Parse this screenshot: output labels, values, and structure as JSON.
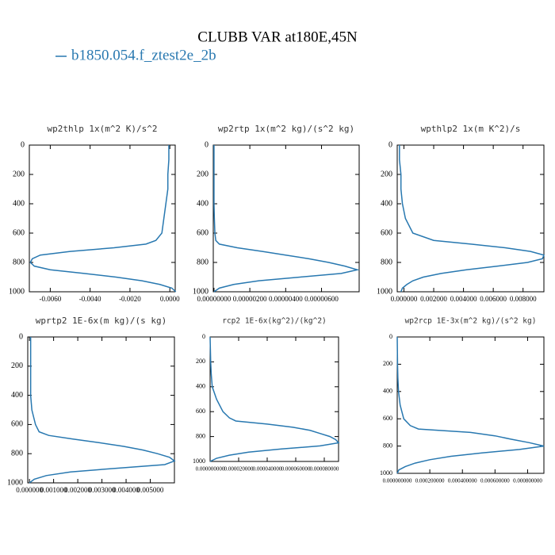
{
  "title": "CLUBB VAR at180E,45N",
  "legend": [
    {
      "name": "b1850.054.f_ztest2e_2b",
      "color": "#2878b0"
    }
  ],
  "chart_data": [
    {
      "type": "line",
      "title": "wp2thlp  1x(m^2 K)/s^2",
      "color": "#2878b0",
      "levels": [
        0,
        100,
        200,
        300,
        400,
        500,
        600,
        650,
        675,
        700,
        725,
        750,
        775,
        800,
        825,
        850,
        875,
        900,
        925,
        950,
        975,
        1000
      ],
      "values": [
        -5e-05,
        -5e-05,
        -0.0001,
        -0.0001,
        -0.0002,
        -0.0003,
        -0.0004,
        -0.0007,
        -0.0012,
        -0.0028,
        -0.005,
        -0.0065,
        -0.0069,
        -0.007,
        -0.0068,
        -0.006,
        -0.0043,
        -0.0027,
        -0.0014,
        -0.0005,
        0.0001,
        0.0003
      ],
      "xlim": [
        -0.00705,
        0.00027
      ],
      "xticks": [
        {
          "value": -0.006,
          "label": "-0.0060"
        },
        {
          "value": -0.004,
          "label": "-0.0040"
        },
        {
          "value": -0.002,
          "label": "-0.0020"
        },
        {
          "value": 0,
          "label": "0.0000"
        }
      ],
      "ylim": [
        0,
        1000
      ],
      "yticks": [
        0,
        200,
        400,
        600,
        800,
        1000
      ]
    },
    {
      "type": "line",
      "title": "wp2rtp  1x(m^2 kg)/(s^2 kg)",
      "color": "#2878b0",
      "levels": [
        0,
        100,
        200,
        300,
        400,
        500,
        600,
        650,
        675,
        700,
        725,
        750,
        775,
        800,
        825,
        850,
        875,
        900,
        925,
        950,
        975,
        1000
      ],
      "values": [
        0,
        0,
        0,
        0,
        0,
        2e-08,
        5e-08,
        1e-07,
        3e-07,
        1.3e-06,
        2.7e-06,
        4e-06,
        5.3e-06,
        6.4e-06,
        7.3e-06,
        8e-06,
        7.1e-06,
        4.8e-06,
        2.5e-06,
        1.1e-06,
        3e-07,
        0
      ],
      "xlim": [
        -4e-08,
        8.1e-06
      ],
      "xticks": [
        {
          "value": 0,
          "label": "0.00000000"
        },
        {
          "value": 2e-06,
          "label": "0.00000200"
        },
        {
          "value": 4e-06,
          "label": "0.00000400"
        },
        {
          "value": 6e-06,
          "label": "0.00000600"
        }
      ],
      "ylim": [
        0,
        1000
      ],
      "yticks": [
        0,
        200,
        400,
        600,
        800,
        1000
      ]
    },
    {
      "type": "line",
      "title": "wpthlp2  1x(m K^2)/s",
      "color": "#2878b0",
      "levels": [
        0,
        100,
        200,
        300,
        400,
        500,
        600,
        650,
        675,
        700,
        725,
        750,
        775,
        800,
        825,
        850,
        875,
        900,
        925,
        950,
        975,
        1000
      ],
      "values": [
        -0.0003,
        -0.0003,
        -0.0002,
        -0.0002,
        -0.0001,
        0.0001,
        0.0006,
        0.002,
        0.0045,
        0.0068,
        0.0085,
        0.0094,
        0.0093,
        0.0083,
        0.0063,
        0.0042,
        0.0025,
        0.0013,
        0.0006,
        0.0002,
        -0.0001,
        -0.0002
      ],
      "xlim": [
        -0.00045,
        0.0094
      ],
      "xticks": [
        {
          "value": 0,
          "label": "0.000000"
        },
        {
          "value": 0.002,
          "label": "0.002000"
        },
        {
          "value": 0.004,
          "label": "0.004000"
        },
        {
          "value": 0.006,
          "label": "0.006000"
        },
        {
          "value": 0.008,
          "label": "0.008000"
        }
      ],
      "ylim": [
        0,
        1000
      ],
      "yticks": [
        0,
        200,
        400,
        600,
        800,
        1000
      ]
    },
    {
      "type": "line",
      "title": "wprtp2  1E-6x(m kg)/(s kg)",
      "color": "#2878b0",
      "levels": [
        0,
        100,
        200,
        300,
        400,
        500,
        600,
        650,
        675,
        700,
        725,
        750,
        775,
        800,
        825,
        850,
        875,
        900,
        925,
        950,
        975,
        1000
      ],
      "values": [
        5e-05,
        5e-05,
        5e-05,
        5e-05,
        5e-05,
        0.0001,
        0.00025,
        0.0004,
        0.0008,
        0.0018,
        0.0029,
        0.0039,
        0.0047,
        0.0053,
        0.0058,
        0.006,
        0.0056,
        0.0036,
        0.0017,
        0.0007,
        0.0002,
        0
      ],
      "xlim": [
        -7e-05,
        0.006
      ],
      "xticks": [
        {
          "value": 0,
          "label": "0.000000"
        },
        {
          "value": 0.001,
          "label": "0.001000"
        },
        {
          "value": 0.002,
          "label": "0.002000"
        },
        {
          "value": 0.003,
          "label": "0.003000"
        },
        {
          "value": 0.004,
          "label": "0.004000"
        },
        {
          "value": 0.005,
          "label": "0.005000"
        }
      ],
      "ylim": [
        0,
        1000
      ],
      "yticks": [
        0,
        200,
        400,
        600,
        800,
        1000
      ]
    },
    {
      "type": "line",
      "title": "rcp2  1E-6x(kg^2)/(kg^2)",
      "color": "#2878b0",
      "levels": [
        0,
        100,
        200,
        300,
        400,
        500,
        600,
        650,
        675,
        700,
        725,
        750,
        775,
        800,
        825,
        850,
        875,
        900,
        925,
        950,
        975,
        1000
      ],
      "values": [
        0,
        2e-07,
        4e-07,
        8e-07,
        1.5e-06,
        4.5e-06,
        9e-06,
        1.35e-05,
        1.8e-05,
        4e-05,
        5.8e-05,
        7e-05,
        7.7e-05,
        8.4e-05,
        8.8e-05,
        9e-05,
        7.7e-05,
        5e-05,
        2.7e-05,
        1.35e-05,
        4.5e-06,
        0
      ],
      "xlim": [
        0,
        9e-05
      ],
      "xticks": [
        {
          "value": 0,
          "label": "0.000000000"
        },
        {
          "value": 2e-05,
          "label": "0.000020000"
        },
        {
          "value": 4e-05,
          "label": "0.000040000"
        },
        {
          "value": 6e-05,
          "label": "0.000060000"
        },
        {
          "value": 8e-05,
          "label": "0.000080000"
        }
      ],
      "ylim": [
        0,
        1000
      ],
      "yticks": [
        0,
        200,
        400,
        600,
        800,
        1000
      ]
    },
    {
      "type": "line",
      "title": "wp2rcp  1E-3x(m^2 kg)/(s^2 kg)",
      "color": "#2878b0",
      "levels": [
        0,
        100,
        200,
        300,
        400,
        500,
        600,
        650,
        675,
        700,
        725,
        750,
        775,
        800,
        825,
        850,
        875,
        900,
        925,
        950,
        975,
        1000
      ],
      "values": [
        0,
        1e-06,
        2e-06,
        4e-06,
        8e-06,
        1.8e-05,
        4e-05,
        8e-05,
        0.00013,
        0.00045,
        0.0006,
        0.0007,
        0.00081,
        0.0009,
        0.00075,
        0.00052,
        0.00033,
        0.0002,
        0.00011,
        5e-05,
        1e-05,
        0
      ],
      "xlim": [
        0,
        0.0009
      ],
      "xticks": [
        {
          "value": 0,
          "label": "0.000000000"
        },
        {
          "value": 0.0002,
          "label": "0.000200000"
        },
        {
          "value": 0.0004,
          "label": "0.000400000"
        },
        {
          "value": 0.0006,
          "label": "0.000600000"
        },
        {
          "value": 0.0008,
          "label": "0.000800000"
        }
      ],
      "ylim": [
        0,
        1000
      ],
      "yticks": [
        0,
        200,
        400,
        600,
        800,
        1000
      ]
    }
  ]
}
